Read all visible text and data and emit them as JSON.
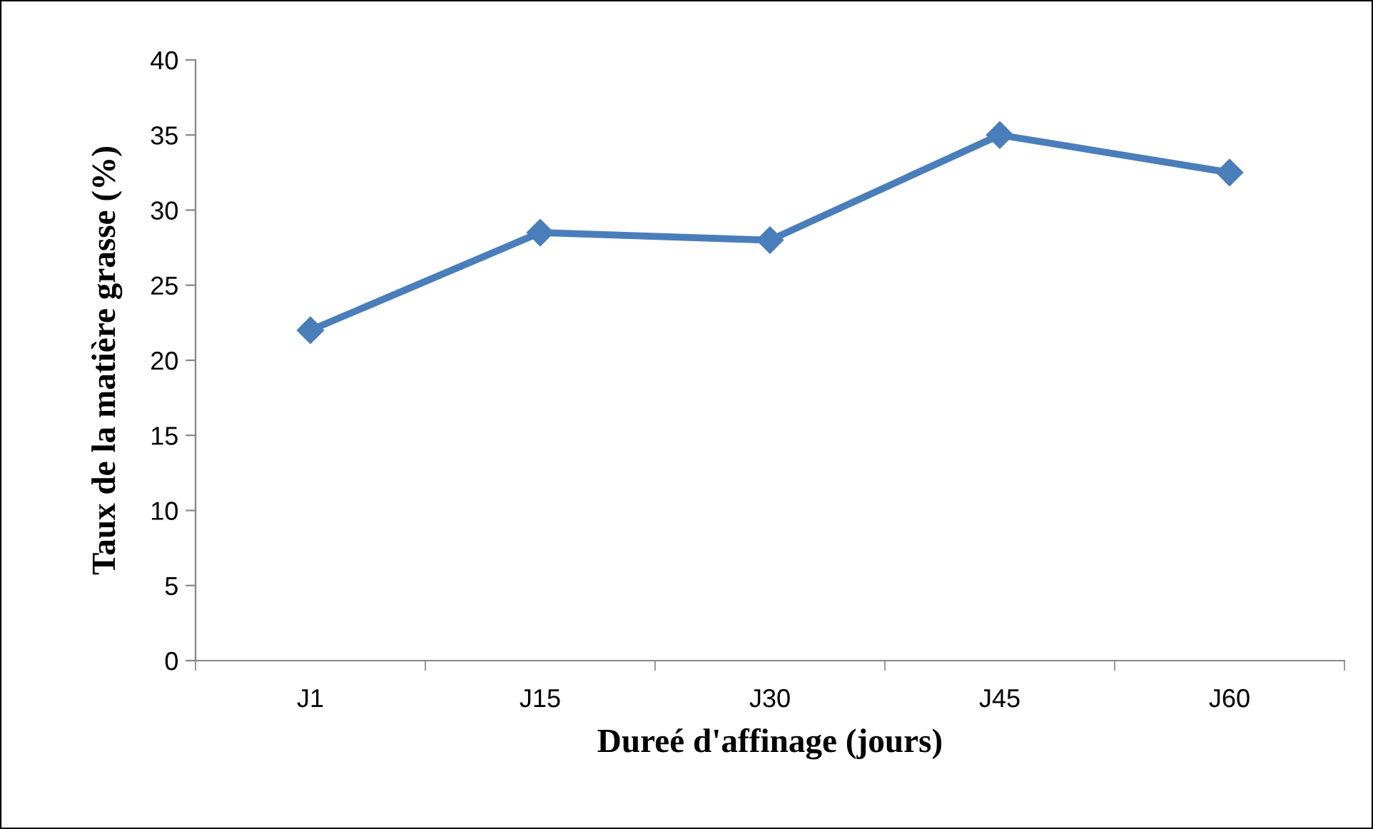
{
  "chart_data": {
    "type": "line",
    "xlabel": "Dureé d'affinage (jours)",
    "ylabel": "Taux de la matière grasse (%)",
    "categories": [
      "J1",
      "J15",
      "J30",
      "J45",
      "J60"
    ],
    "series": [
      {
        "color": "#4a7ebb",
        "values": [
          22,
          28.5,
          28,
          35,
          32.5
        ]
      }
    ],
    "ylim": [
      0,
      40
    ],
    "yticks": [
      0,
      5,
      10,
      15,
      20,
      25,
      30,
      35,
      40
    ],
    "marker": "diamond",
    "line_style": "solid",
    "grid": false,
    "legend": false
  }
}
